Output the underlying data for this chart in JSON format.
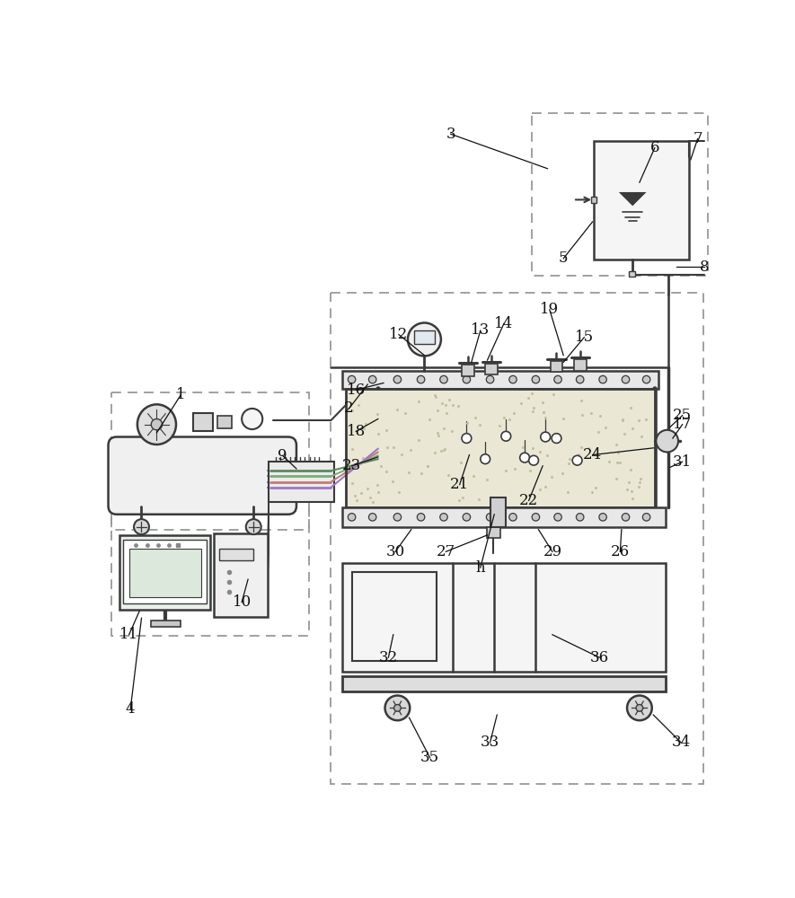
{
  "bg_color": "#ffffff",
  "line_color": "#3a3a3a",
  "dashed_color": "#999999",
  "label_color": "#111111",
  "sand_color": "#eae8d5",
  "cable_colors": [
    "#5a8a5a",
    "#7aaa7a",
    "#c47a7a",
    "#9a7ac4"
  ],
  "label_items": [
    [
      "1",
      115,
      415,
      80,
      470
    ],
    [
      "2",
      358,
      435,
      385,
      400
    ],
    [
      "3",
      505,
      38,
      645,
      88
    ],
    [
      "4",
      42,
      870,
      58,
      738
    ],
    [
      "5",
      668,
      218,
      710,
      165
    ],
    [
      "6",
      800,
      58,
      778,
      108
    ],
    [
      "7",
      862,
      45,
      852,
      75
    ],
    [
      "8",
      872,
      230,
      832,
      230
    ],
    [
      "9",
      262,
      503,
      282,
      522
    ],
    [
      "10",
      203,
      715,
      212,
      682
    ],
    [
      "11",
      40,
      762,
      55,
      728
    ],
    [
      "12",
      430,
      328,
      467,
      358
    ],
    [
      "13",
      548,
      322,
      535,
      368
    ],
    [
      "14",
      582,
      312,
      558,
      365
    ],
    [
      "15",
      698,
      332,
      668,
      368
    ],
    [
      "16",
      368,
      408,
      408,
      398
    ],
    [
      "17",
      840,
      458,
      826,
      478
    ],
    [
      "18",
      368,
      468,
      400,
      450
    ],
    [
      "19",
      648,
      292,
      668,
      358
    ],
    [
      "21",
      518,
      545,
      532,
      502
    ],
    [
      "22",
      618,
      568,
      638,
      518
    ],
    [
      "23",
      362,
      518,
      400,
      505
    ],
    [
      "24",
      710,
      502,
      798,
      492
    ],
    [
      "25",
      840,
      445,
      822,
      462
    ],
    [
      "26",
      750,
      642,
      752,
      610
    ],
    [
      "27",
      498,
      642,
      558,
      618
    ],
    [
      "29",
      652,
      642,
      632,
      610
    ],
    [
      "30",
      425,
      642,
      448,
      610
    ],
    [
      "31",
      840,
      512,
      822,
      520
    ],
    [
      "32",
      415,
      795,
      422,
      762
    ],
    [
      "33",
      562,
      918,
      572,
      878
    ],
    [
      "34",
      838,
      918,
      798,
      878
    ],
    [
      "35",
      475,
      940,
      445,
      882
    ],
    [
      "36",
      720,
      795,
      652,
      762
    ],
    [
      "h",
      548,
      665,
      568,
      588
    ]
  ]
}
